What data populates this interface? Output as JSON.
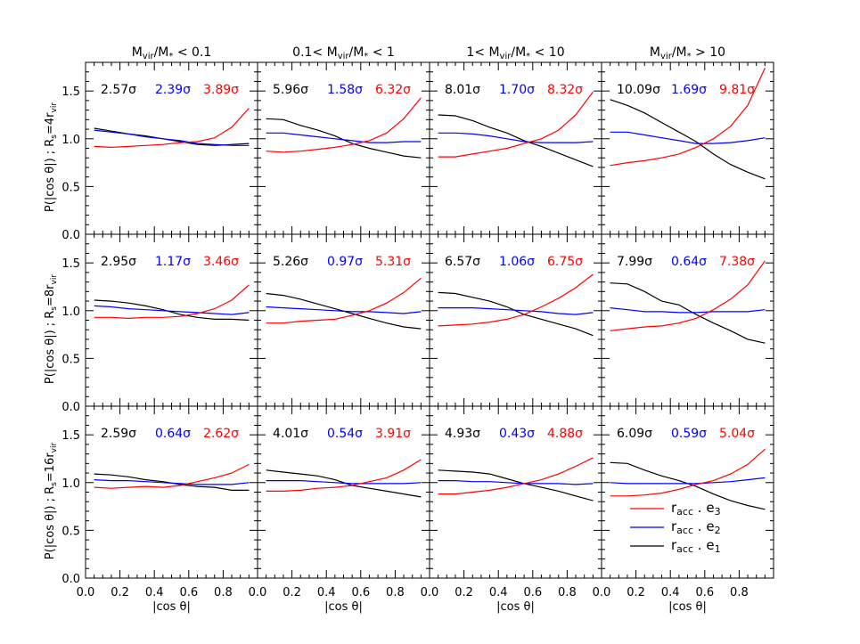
{
  "chart_data": {
    "type": "line",
    "colors": {
      "e3": "#ff0000",
      "e2": "#0000ff",
      "e1": "#000000"
    },
    "x": [
      0.05,
      0.15,
      0.25,
      0.35,
      0.45,
      0.55,
      0.65,
      0.75,
      0.85,
      0.95
    ],
    "xlim": [
      0.0,
      1.0
    ],
    "ylim": [
      0.0,
      1.8
    ],
    "xticks": [
      "0.0",
      "0.2",
      "0.4",
      "0.6",
      "0.8"
    ],
    "yticks": [
      "0.0",
      "0.5",
      "1.0",
      "1.5"
    ],
    "xlabel": "|cos θ|",
    "column_titles": [
      {
        "pre": "M",
        "sub1": "vir",
        "mid": "/M",
        "sub2": "*",
        "post": " < 0.1"
      },
      {
        "pre": "0.1< M",
        "sub1": "vir",
        "mid": "/M",
        "sub2": "*",
        "post": " < 1"
      },
      {
        "pre": "1< M",
        "sub1": "vir",
        "mid": "/M",
        "sub2": "*",
        "post": " < 10"
      },
      {
        "pre": "M",
        "sub1": "vir",
        "mid": "/M",
        "sub2": "*",
        "post": " > 10"
      }
    ],
    "row_labels": [
      {
        "main": "P(|cos θ|)   ;   R",
        "sub": "s",
        "eq": "=4r",
        "sub2": "vir"
      },
      {
        "main": "P(|cos θ|)   ;   R",
        "sub": "s",
        "eq": "=8r",
        "sub2": "vir"
      },
      {
        "main": "P(|cos θ|)   ;   R",
        "sub": "s",
        "eq": "=16r",
        "sub2": "vir"
      }
    ],
    "legend": [
      {
        "key": "e3",
        "label": "r",
        "sub": "acc",
        "mid": " . e",
        "sub2": "3"
      },
      {
        "key": "e2",
        "label": "r",
        "sub": "acc",
        "mid": " . e",
        "sub2": "2"
      },
      {
        "key": "e1",
        "label": "r",
        "sub": "acc",
        "mid": " . e",
        "sub2": "1"
      }
    ],
    "panels": [
      [
        {
          "sig": [
            "2.57σ",
            "2.39σ",
            "3.89σ"
          ],
          "e3": [
            0.92,
            0.91,
            0.92,
            0.93,
            0.94,
            0.96,
            0.97,
            1.01,
            1.12,
            1.32
          ],
          "e2": [
            1.09,
            1.07,
            1.05,
            1.02,
            1.0,
            0.98,
            0.95,
            0.94,
            0.93,
            0.93
          ],
          "e1": [
            1.11,
            1.08,
            1.05,
            1.03,
            1.0,
            0.97,
            0.94,
            0.93,
            0.94,
            0.95
          ]
        },
        {
          "sig": [
            "5.96σ",
            "1.58σ",
            "6.32σ"
          ],
          "e3": [
            0.87,
            0.86,
            0.87,
            0.89,
            0.91,
            0.94,
            0.98,
            1.06,
            1.21,
            1.43
          ],
          "e2": [
            1.06,
            1.06,
            1.04,
            1.02,
            1.0,
            0.98,
            0.96,
            0.96,
            0.97,
            0.97
          ],
          "e1": [
            1.21,
            1.2,
            1.14,
            1.09,
            1.03,
            0.95,
            0.9,
            0.86,
            0.82,
            0.8
          ]
        },
        {
          "sig": [
            "8.01σ",
            "1.70σ",
            "8.32σ"
          ],
          "e3": [
            0.81,
            0.81,
            0.84,
            0.87,
            0.9,
            0.95,
            1.0,
            1.09,
            1.25,
            1.49
          ],
          "e2": [
            1.06,
            1.06,
            1.05,
            1.03,
            1.0,
            0.97,
            0.96,
            0.96,
            0.96,
            0.97
          ],
          "e1": [
            1.25,
            1.24,
            1.19,
            1.12,
            1.06,
            0.98,
            0.92,
            0.85,
            0.78,
            0.71
          ]
        },
        {
          "sig": [
            "10.09σ",
            "1.69σ",
            "9.81σ"
          ],
          "e3": [
            0.72,
            0.75,
            0.77,
            0.8,
            0.84,
            0.91,
            1.0,
            1.13,
            1.35,
            1.74
          ],
          "e2": [
            1.07,
            1.07,
            1.04,
            1.01,
            0.98,
            0.95,
            0.95,
            0.96,
            0.98,
            1.01
          ],
          "e1": [
            1.41,
            1.35,
            1.27,
            1.17,
            1.07,
            0.97,
            0.84,
            0.73,
            0.65,
            0.58
          ]
        }
      ],
      [
        {
          "sig": [
            "2.95σ",
            "1.17σ",
            "3.46σ"
          ],
          "e3": [
            0.93,
            0.93,
            0.92,
            0.93,
            0.93,
            0.94,
            0.97,
            1.02,
            1.11,
            1.27
          ],
          "e2": [
            1.05,
            1.04,
            1.02,
            1.01,
            1.0,
            0.99,
            0.98,
            0.97,
            0.96,
            0.98
          ],
          "e1": [
            1.11,
            1.1,
            1.08,
            1.05,
            1.01,
            0.96,
            0.93,
            0.91,
            0.91,
            0.9
          ]
        },
        {
          "sig": [
            "5.26σ",
            "0.97σ",
            "5.31σ"
          ],
          "e3": [
            0.87,
            0.87,
            0.89,
            0.9,
            0.91,
            0.95,
            1.0,
            1.08,
            1.19,
            1.34
          ],
          "e2": [
            1.04,
            1.03,
            1.02,
            1.01,
            1.0,
            0.99,
            0.99,
            0.98,
            0.97,
            0.99
          ],
          "e1": [
            1.18,
            1.16,
            1.12,
            1.07,
            1.02,
            0.97,
            0.92,
            0.87,
            0.83,
            0.81
          ]
        },
        {
          "sig": [
            "6.57σ",
            "1.06σ",
            "6.75σ"
          ],
          "e3": [
            0.84,
            0.85,
            0.86,
            0.88,
            0.91,
            0.96,
            1.04,
            1.13,
            1.24,
            1.38
          ],
          "e2": [
            1.03,
            1.03,
            1.03,
            1.02,
            1.01,
            1.0,
            0.99,
            0.97,
            0.96,
            0.98
          ],
          "e1": [
            1.19,
            1.18,
            1.14,
            1.1,
            1.04,
            0.96,
            0.91,
            0.86,
            0.81,
            0.74
          ]
        },
        {
          "sig": [
            "7.99σ",
            "0.64σ",
            "7.38σ"
          ],
          "e3": [
            0.79,
            0.81,
            0.83,
            0.84,
            0.87,
            0.92,
            1.01,
            1.12,
            1.27,
            1.52
          ],
          "e2": [
            1.03,
            1.01,
            0.99,
            0.99,
            0.98,
            0.98,
            0.99,
            0.99,
            0.99,
            1.01
          ],
          "e1": [
            1.29,
            1.28,
            1.2,
            1.1,
            1.06,
            0.96,
            0.87,
            0.79,
            0.7,
            0.66
          ]
        }
      ],
      [
        {
          "sig": [
            "2.59σ",
            "0.64σ",
            "2.62σ"
          ],
          "e3": [
            0.95,
            0.94,
            0.95,
            0.96,
            0.95,
            0.97,
            1.01,
            1.05,
            1.1,
            1.19
          ],
          "e2": [
            1.03,
            1.02,
            1.02,
            1.01,
            1.0,
            0.99,
            0.98,
            0.98,
            0.98,
            1.0
          ],
          "e1": [
            1.09,
            1.08,
            1.06,
            1.03,
            1.01,
            0.98,
            0.96,
            0.95,
            0.92,
            0.92
          ]
        },
        {
          "sig": [
            "4.01σ",
            "0.54σ",
            "3.91σ"
          ],
          "e3": [
            0.91,
            0.91,
            0.92,
            0.94,
            0.95,
            0.97,
            1.01,
            1.05,
            1.13,
            1.24
          ],
          "e2": [
            1.02,
            1.02,
            1.02,
            1.01,
            1.0,
            0.99,
            0.99,
            0.99,
            0.99,
            1.0
          ],
          "e1": [
            1.13,
            1.11,
            1.09,
            1.07,
            1.03,
            0.97,
            0.94,
            0.91,
            0.88,
            0.85
          ]
        },
        {
          "sig": [
            "4.93σ",
            "0.43σ",
            "4.88σ"
          ],
          "e3": [
            0.88,
            0.88,
            0.9,
            0.92,
            0.95,
            0.99,
            1.03,
            1.09,
            1.17,
            1.26
          ],
          "e2": [
            1.02,
            1.02,
            1.01,
            1.01,
            1.0,
            0.99,
            0.99,
            0.99,
            0.98,
            0.99
          ],
          "e1": [
            1.13,
            1.12,
            1.11,
            1.09,
            1.04,
            0.99,
            0.95,
            0.91,
            0.86,
            0.81
          ]
        },
        {
          "sig": [
            "6.09σ",
            "0.59σ",
            "5.04σ"
          ],
          "e3": [
            0.86,
            0.86,
            0.87,
            0.89,
            0.93,
            0.98,
            1.02,
            1.09,
            1.19,
            1.35
          ],
          "e2": [
            1.0,
            0.99,
            0.99,
            0.99,
            0.99,
            0.99,
            1.0,
            1.01,
            1.03,
            1.05
          ],
          "e1": [
            1.21,
            1.2,
            1.13,
            1.07,
            1.02,
            0.96,
            0.88,
            0.81,
            0.76,
            0.72
          ]
        }
      ]
    ]
  }
}
